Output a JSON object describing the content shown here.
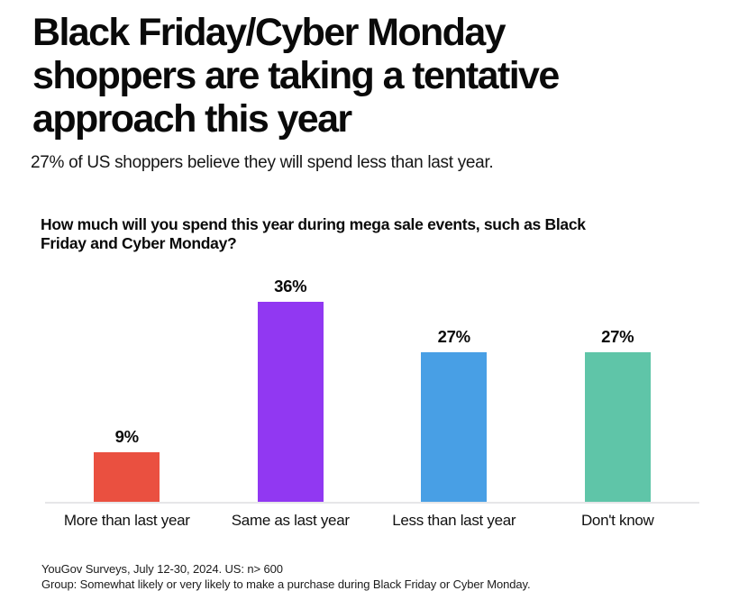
{
  "page": {
    "title": "Black Friday/Cyber Monday shoppers are taking a tentative approach this year",
    "title_lines": [
      "Black Friday/Cyber Monday",
      "shoppers are taking a tentative",
      "approach this year"
    ],
    "subtitle": "27% of US shoppers believe they will spend less than last year.",
    "footer_lines": [
      "YouGov Surveys, July 12-30, 2024. US: n> 600",
      "Group: Somewhat likely or very likely to make a purchase during Black Friday or Cyber Monday."
    ]
  },
  "chart_data": {
    "type": "bar",
    "title": "How much will you spend this year during mega sale events, such as Black Friday and Cyber Monday?",
    "title_lines": [
      "How much will you spend this year during mega sale events, such as Black",
      "Friday and Cyber Monday?"
    ],
    "categories": [
      "More than last year",
      "Same as last year",
      "Less than last year",
      "Don't know"
    ],
    "values": [
      9,
      36,
      27,
      27
    ],
    "value_labels": [
      "9%",
      "36%",
      "27%",
      "27%"
    ],
    "bar_colors": [
      "#EA5040",
      "#9138F2",
      "#489FE5",
      "#5FC5A8"
    ],
    "xlabel": "",
    "ylabel": "",
    "ylim": [
      0,
      40
    ],
    "grid": false,
    "legend_position": "none",
    "axis_line_color": "#e6e6e8"
  }
}
